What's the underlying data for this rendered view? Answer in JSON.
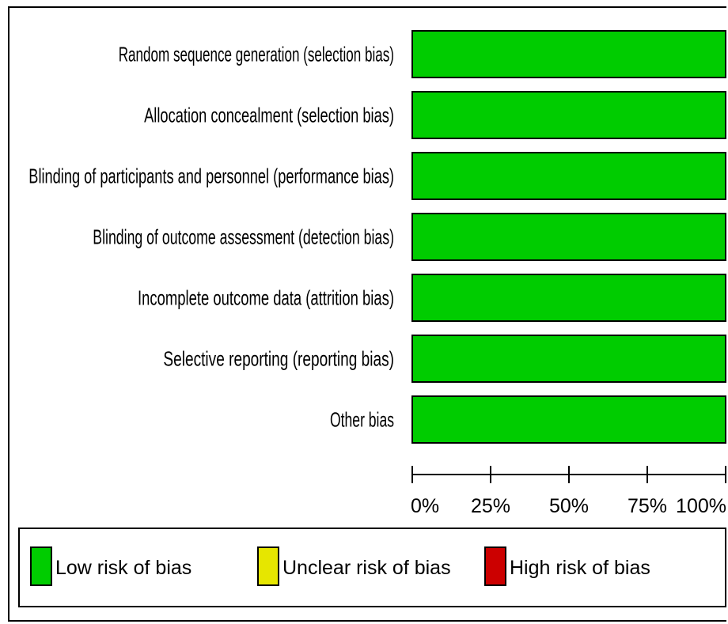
{
  "chart_data": {
    "type": "bar",
    "orientation": "horizontal",
    "stacked": true,
    "categories": [
      "Random sequence generation (selection bias)",
      "Allocation concealment (selection bias)",
      "Blinding of participants and personnel (performance bias)",
      "Blinding of outcome assessment (detection bias)",
      "Incomplete outcome data (attrition bias)",
      "Selective reporting (reporting bias)",
      "Other bias"
    ],
    "series": [
      {
        "name": "Low risk of bias",
        "color": "#00cc00",
        "values": [
          100,
          100,
          100,
          100,
          100,
          100,
          100
        ]
      },
      {
        "name": "Unclear risk of bias",
        "color": "#e6e600",
        "values": [
          0,
          0,
          0,
          0,
          0,
          0,
          0
        ]
      },
      {
        "name": "High risk of bias",
        "color": "#cc0000",
        "values": [
          0,
          0,
          0,
          0,
          0,
          0,
          0
        ]
      }
    ],
    "xlim": [
      0,
      100
    ],
    "x_ticks": [
      0,
      25,
      50,
      75,
      100
    ],
    "x_tick_labels": [
      "0%",
      "25%",
      "50%",
      "75%",
      "100%"
    ],
    "grid": false,
    "legend_position": "bottom"
  }
}
